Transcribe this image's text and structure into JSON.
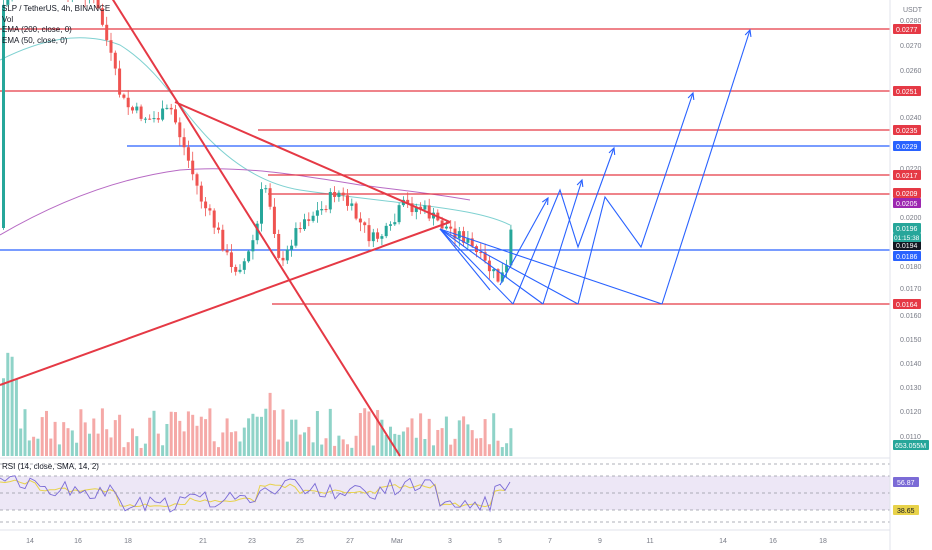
{
  "chart": {
    "symbol_line": "SLP / TetherUS, 4h, BINANCE",
    "currency": "USDT",
    "indicators": [
      "Vol",
      "EMA (200, close, 0)",
      "EMA (50, close, 0)"
    ],
    "rsi_label": "RSI (14, close, SMA, 14, 2)",
    "time_countdown": "01:15:38",
    "volume_badge": "653.055M"
  },
  "colors": {
    "up": "#26a69a",
    "down": "#ef5350",
    "vol_up": "#8fd3c8",
    "vol_down": "#f5a9a7",
    "red_line": "#e53945",
    "blue_line": "#2962ff",
    "ema50": "#7fd1d1",
    "ema200": "#b76ac4",
    "rsi": "#7b6bd6",
    "rsi_ma": "#e8d24a",
    "rsi_bg": "#ede7f6"
  },
  "chart_data": {
    "type": "candlestick",
    "price_ticks": [
      "0.0280",
      "0.0270",
      "0.0260",
      "0.0240",
      "0.0220",
      "0.0200",
      "0.0180",
      "0.0170",
      "0.0160",
      "0.0150",
      "0.0140",
      "0.0130",
      "0.0120",
      "0.0110"
    ],
    "date_ticks": [
      "14",
      "16",
      "18",
      "21",
      "23",
      "25",
      "27",
      "Mar",
      "3",
      "5",
      "7",
      "9",
      "11",
      "14",
      "16",
      "18"
    ],
    "level_labels": [
      {
        "text": "0.0277",
        "color": "#e53945"
      },
      {
        "text": "0.0251",
        "color": "#e53945"
      },
      {
        "text": "0.0235",
        "color": "#e53945"
      },
      {
        "text": "0.0229",
        "color": "#2962ff"
      },
      {
        "text": "0.0217",
        "color": "#e53945"
      },
      {
        "text": "0.0209",
        "color": "#e53945"
      },
      {
        "text": "0.0205",
        "color": "#9c27b0"
      },
      {
        "text": "0.0196",
        "color": "#26a69a"
      },
      {
        "text": "0.0194",
        "color": "#131722"
      },
      {
        "text": "0.0186",
        "color": "#2962ff"
      },
      {
        "text": "0.0164",
        "color": "#e53945"
      }
    ],
    "rsi_labels": [
      {
        "text": "56.87",
        "color": "#7b6bd6"
      },
      {
        "text": "38.65",
        "color": "#e8d24a"
      }
    ]
  }
}
